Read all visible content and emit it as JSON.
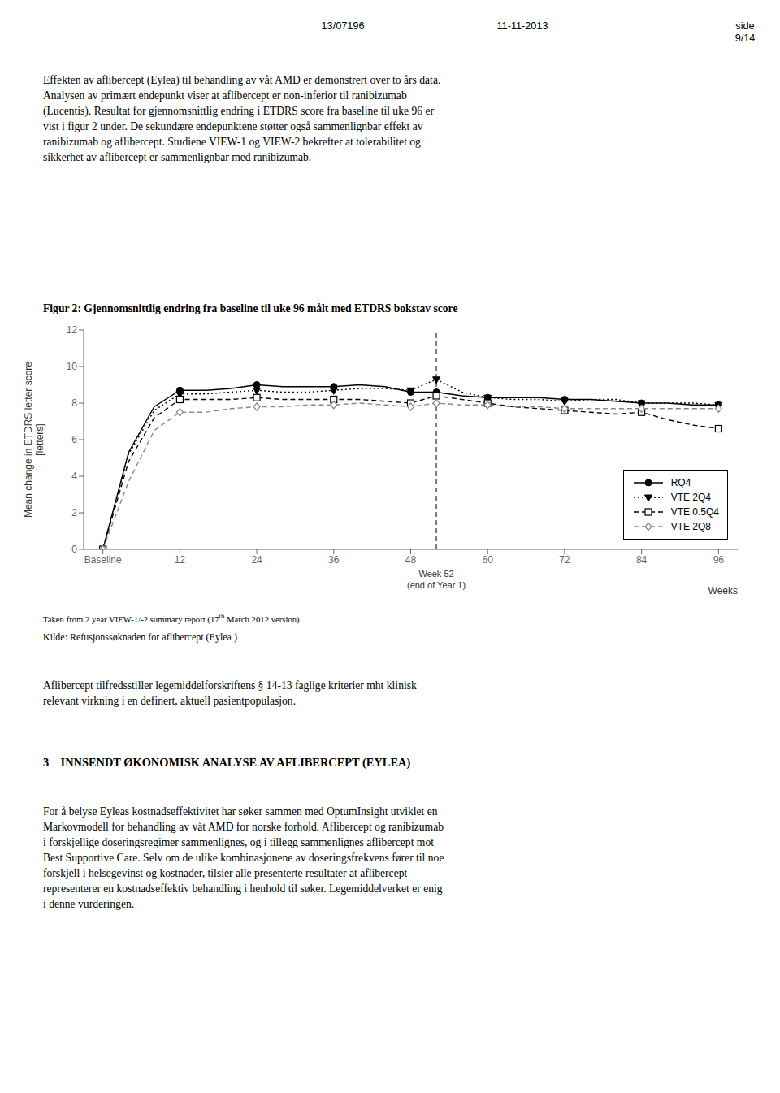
{
  "page": {
    "header_left": "13/07196",
    "header_center": "11-11-2013",
    "header_right": "side\n9/14",
    "para1": "Effekten av aflibercept (Eylea) til behandling av våt AMD er demonstrert over to års data.\nAnalysen av primært endepunkt viser at aflibercept er non-inferior til ranibizumab\n(Lucentis). Resultat for gjennomsnittlig endring i ETDRS score fra baseline til uke 96 er\nvist i figur 2 under. De sekundære endepunktene støtter også sammenlignbar effekt av\nranibizumab og aflibercept. Studiene VIEW-1 og VIEW-2 bekrefter at tolerabilitet og\nsikkerhet av aflibercept er sammenlignbar med ranibizumab.",
    "fig_caption": "Figur 2: Gjennomsnittlig endring fra baseline til uke 96 målt med ETDRS bokstav score",
    "note1a": "Taken from 2 year VIEW-1/-2 summary report (17",
    "note1b": "th",
    "note1c": " March 2012 version).",
    "note2": "Kilde: Refusjonssøknaden for aflibercept (Eylea )",
    "para3": "Aflibercept tilfredsstiller legemiddelforskriftens § 14-13 faglige kriterier mht klinisk\nrelevant virkning i en definert, aktuell pasientpopulasjon.",
    "section3_title": "3    INNSENDT ØKONOMISK ANALYSE AV AFLIBERCEPT (EYLEA)",
    "para4": "For å belyse Eyleas kostnadseffektivitet har søker sammen med OptumInsight utviklet en\nMarkovmodell for behandling av våt AMD for norske forhold. Aflibercept og ranibizumab\ni forskjellige doseringsregimer sammenlignes, og i tillegg sammenlignes aflibercept mot\nBest Supportive Care. Selv om de ulike kombinasjonene av doseringsfrekvens fører til noe\nforskjell i helsegevinst og kostnader, tilsier alle presenterte resultater at aflibercept\nrepresenterer en kostnadseffektiv behandling i henhold til søker. Legemiddelverket er enig\ni denne vurderingen."
  },
  "chart_data": {
    "type": "line",
    "x_label": "Weeks",
    "y_label": "Mean change in ETDRS letter score\n[letters]",
    "x": [
      0,
      4,
      8,
      12,
      16,
      20,
      24,
      28,
      32,
      36,
      40,
      44,
      48,
      52,
      56,
      60,
      64,
      68,
      72,
      76,
      80,
      84,
      88,
      92,
      96
    ],
    "xlim": [
      -3,
      99
    ],
    "xticks": [
      {
        "value": 0,
        "label": "Baseline"
      },
      12,
      24,
      36,
      48,
      60,
      72,
      84,
      96
    ],
    "ylim": [
      0,
      12
    ],
    "yticks": [
      0,
      2,
      4,
      6,
      8,
      10,
      12
    ],
    "grid": false,
    "legend": "lower right",
    "annotations": [
      {
        "x": 52,
        "label": "Week 52\n(end of Year 1)",
        "line_style": "dashed"
      }
    ],
    "series": [
      {
        "name": "RQ4",
        "color": "#000000",
        "line_style": "solid",
        "marker": "circle",
        "values": [
          0,
          5.3,
          7.8,
          8.7,
          8.7,
          8.8,
          9.0,
          8.9,
          8.9,
          8.9,
          9.0,
          8.9,
          8.6,
          8.6,
          8.4,
          8.3,
          8.3,
          8.3,
          8.2,
          8.2,
          8.1,
          8.0,
          8.0,
          7.9,
          7.9
        ],
        "marker_x": [
          0,
          12,
          24,
          36,
          48,
          52,
          60,
          72,
          84,
          96
        ],
        "marker_values": [
          0,
          8.7,
          9.0,
          8.9,
          8.6,
          8.6,
          8.3,
          8.2,
          8.0,
          7.9
        ]
      },
      {
        "name": "VTE 2Q4",
        "color": "#000000",
        "line_style": "dotted",
        "marker": "triangle_down",
        "values": [
          0,
          5.2,
          7.6,
          8.5,
          8.5,
          8.6,
          8.7,
          8.6,
          8.6,
          8.7,
          8.8,
          8.8,
          8.7,
          9.3,
          8.6,
          8.3,
          8.2,
          8.2,
          8.1,
          8.2,
          8.2,
          8.0,
          8.0,
          8.0,
          7.9
        ],
        "marker_x": [
          0,
          12,
          24,
          36,
          48,
          52,
          60,
          72,
          84,
          96
        ],
        "marker_values": [
          0,
          8.5,
          8.7,
          8.7,
          8.7,
          9.3,
          8.3,
          8.1,
          8.0,
          7.9
        ]
      },
      {
        "name": "VTE 0.5Q4",
        "color": "#000000",
        "line_style": "dashed",
        "marker": "open_square",
        "values": [
          0,
          4.8,
          7.2,
          8.2,
          8.2,
          8.2,
          8.3,
          8.2,
          8.2,
          8.2,
          8.2,
          8.1,
          8.0,
          8.4,
          8.2,
          8.0,
          7.8,
          7.7,
          7.6,
          7.5,
          7.4,
          7.5,
          7.1,
          6.8,
          6.6
        ],
        "marker_x": [
          0,
          12,
          24,
          36,
          48,
          52,
          60,
          72,
          84,
          96
        ],
        "marker_values": [
          0,
          8.2,
          8.3,
          8.2,
          8.0,
          8.4,
          8.0,
          7.6,
          7.5,
          6.6
        ]
      },
      {
        "name": "VTE 2Q8",
        "color": "#888888",
        "line_style": "dashed",
        "marker": "open_diamond",
        "values": [
          0,
          3.7,
          6.5,
          7.5,
          7.5,
          7.7,
          7.8,
          7.8,
          7.9,
          7.9,
          8.0,
          7.9,
          7.8,
          8.0,
          7.9,
          7.9,
          7.8,
          7.8,
          7.7,
          7.7,
          7.7,
          7.7,
          7.7,
          7.7,
          7.7
        ],
        "marker_x": [
          0,
          12,
          24,
          36,
          48,
          52,
          60,
          72,
          84,
          96
        ],
        "marker_values": [
          0,
          7.5,
          7.8,
          7.9,
          7.8,
          8.0,
          7.9,
          7.7,
          7.7,
          7.7
        ]
      }
    ]
  }
}
